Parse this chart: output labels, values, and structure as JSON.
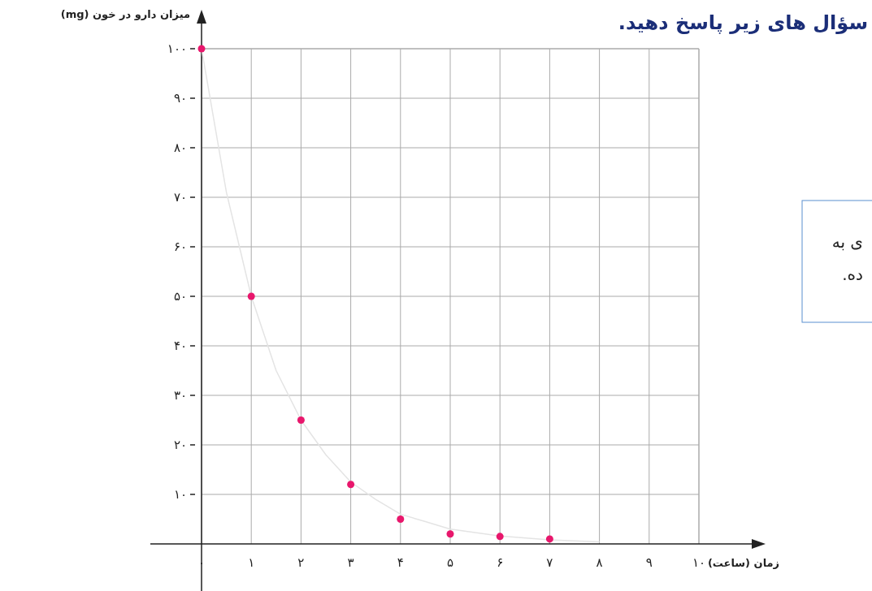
{
  "chart_data": {
    "type": "scatter",
    "title": "سؤال های زیر پاسخ دهید.",
    "xlabel": "زمان (ساعت)",
    "ylabel": "میزان دارو در خون (mg)",
    "annotations": [
      "ی به",
      "ده."
    ],
    "series": [
      {
        "type": "line",
        "marker": "none",
        "color": "#e4e4e4",
        "x": [
          0,
          0.5,
          1,
          1.5,
          2,
          2.5,
          3,
          3.5,
          4,
          4.5,
          5,
          6,
          7,
          8
        ],
        "values": [
          100,
          71,
          50,
          35,
          25,
          18,
          12.5,
          9,
          6,
          4.5,
          3,
          1.6,
          0.8,
          0.4
        ]
      },
      {
        "type": "scatter",
        "color": "#e8176c",
        "x": [
          0,
          1,
          2,
          3,
          4,
          5,
          6,
          7
        ],
        "values": [
          100,
          50,
          25,
          12,
          5,
          2,
          1.5,
          1
        ]
      }
    ],
    "xlim": [
      0,
      10
    ],
    "ylim": [
      0,
      100
    ],
    "xticks": [
      {
        "value": 0,
        "label": "۰"
      },
      {
        "value": 1,
        "label": "۱"
      },
      {
        "value": 2,
        "label": "۲"
      },
      {
        "value": 3,
        "label": "۳"
      },
      {
        "value": 4,
        "label": "۴"
      },
      {
        "value": 5,
        "label": "۵"
      },
      {
        "value": 6,
        "label": "۶"
      },
      {
        "value": 7,
        "label": "۷"
      },
      {
        "value": 8,
        "label": "۸"
      },
      {
        "value": 9,
        "label": "۹"
      },
      {
        "value": 10,
        "label": "۱۰"
      }
    ],
    "yticks": [
      {
        "value": 10,
        "label": "۱۰"
      },
      {
        "value": 20,
        "label": "۲۰"
      },
      {
        "value": 30,
        "label": "۳۰"
      },
      {
        "value": 40,
        "label": "۴۰"
      },
      {
        "value": 50,
        "label": "۵۰"
      },
      {
        "value": 60,
        "label": "۶۰"
      },
      {
        "value": 70,
        "label": "۷۰"
      },
      {
        "value": 80,
        "label": "۸۰"
      },
      {
        "value": 90,
        "label": "۹۰"
      },
      {
        "value": 100,
        "label": "۱۰۰"
      }
    ],
    "grid": true,
    "marker": "circle",
    "line_style": "solid"
  }
}
